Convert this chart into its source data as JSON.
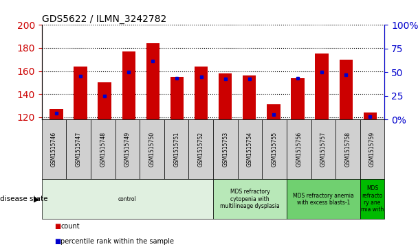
{
  "title": "GDS5622 / ILMN_3242782",
  "samples": [
    "GSM1515746",
    "GSM1515747",
    "GSM1515748",
    "GSM1515749",
    "GSM1515750",
    "GSM1515751",
    "GSM1515752",
    "GSM1515753",
    "GSM1515754",
    "GSM1515755",
    "GSM1515756",
    "GSM1515757",
    "GSM1515758",
    "GSM1515759"
  ],
  "counts": [
    127,
    164,
    150,
    177,
    184,
    155,
    164,
    158,
    156,
    131,
    154,
    175,
    170,
    124
  ],
  "percentiles": [
    7,
    46,
    25,
    50,
    62,
    44,
    45,
    43,
    43,
    5,
    44,
    50,
    47,
    3
  ],
  "ylim_left": [
    118,
    200
  ],
  "ylim_right": [
    0,
    100
  ],
  "yticks_left": [
    120,
    140,
    160,
    180,
    200
  ],
  "yticks_right": [
    0,
    25,
    50,
    75,
    100
  ],
  "right_ytick_labels": [
    "0%",
    "25",
    "50",
    "75",
    "100%"
  ],
  "bar_color": "#cc0000",
  "dot_color": "#0000cc",
  "bar_width": 0.55,
  "disease_groups": [
    {
      "label": "control",
      "start": 0,
      "end": 7,
      "color": "#e0f0e0"
    },
    {
      "label": "MDS refractory\ncytopenia with\nmultilineage dysplasia",
      "start": 7,
      "end": 10,
      "color": "#b8e8b8"
    },
    {
      "label": "MDS refractory anemia\nwith excess blasts-1",
      "start": 10,
      "end": 13,
      "color": "#70d070"
    },
    {
      "label": "MDS\nrefracto\nry ane\nmia with",
      "start": 13,
      "end": 14,
      "color": "#00bb00"
    }
  ],
  "legend_count_label": "count",
  "legend_percentile_label": "percentile rank within the sample",
  "disease_state_label": "disease state",
  "left_axis_color": "#cc0000",
  "right_axis_color": "#0000cc",
  "sample_box_color": "#d0d0d0",
  "grid_color": "#000000"
}
